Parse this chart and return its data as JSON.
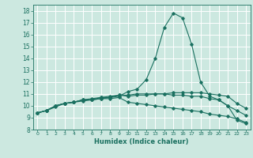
{
  "xlabel": "Humidex (Indice chaleur)",
  "bg_color": "#cce8e0",
  "grid_color": "#ffffff",
  "line_color": "#1a7060",
  "xlim": [
    -0.5,
    23.5
  ],
  "ylim": [
    8,
    18.5
  ],
  "xticks": [
    0,
    1,
    2,
    3,
    4,
    5,
    6,
    7,
    8,
    9,
    10,
    11,
    12,
    13,
    14,
    15,
    16,
    17,
    18,
    19,
    20,
    21,
    22,
    23
  ],
  "yticks": [
    8,
    9,
    10,
    11,
    12,
    13,
    14,
    15,
    16,
    17,
    18
  ],
  "series": [
    [
      9.4,
      9.6,
      9.9,
      10.2,
      10.3,
      10.4,
      10.5,
      10.6,
      10.7,
      10.8,
      11.2,
      11.4,
      12.2,
      14.0,
      16.6,
      17.8,
      17.4,
      15.2,
      12.0,
      10.8,
      10.5,
      10.0,
      8.8,
      8.5
    ],
    [
      9.4,
      9.6,
      10.0,
      10.2,
      10.3,
      10.5,
      10.5,
      10.7,
      10.7,
      10.9,
      10.8,
      10.9,
      10.9,
      11.0,
      11.0,
      11.1,
      11.1,
      11.1,
      11.1,
      11.0,
      10.9,
      10.8,
      10.2,
      9.8
    ],
    [
      9.4,
      9.6,
      10.0,
      10.2,
      10.3,
      10.5,
      10.5,
      10.6,
      10.6,
      10.7,
      10.3,
      10.2,
      10.1,
      10.0,
      9.9,
      9.8,
      9.7,
      9.6,
      9.5,
      9.3,
      9.2,
      9.1,
      8.9,
      8.6
    ],
    [
      9.4,
      9.6,
      10.0,
      10.2,
      10.3,
      10.5,
      10.6,
      10.7,
      10.8,
      10.9,
      10.9,
      11.0,
      11.0,
      11.0,
      11.0,
      10.9,
      10.9,
      10.8,
      10.8,
      10.6,
      10.5,
      10.0,
      9.6,
      9.2
    ]
  ]
}
